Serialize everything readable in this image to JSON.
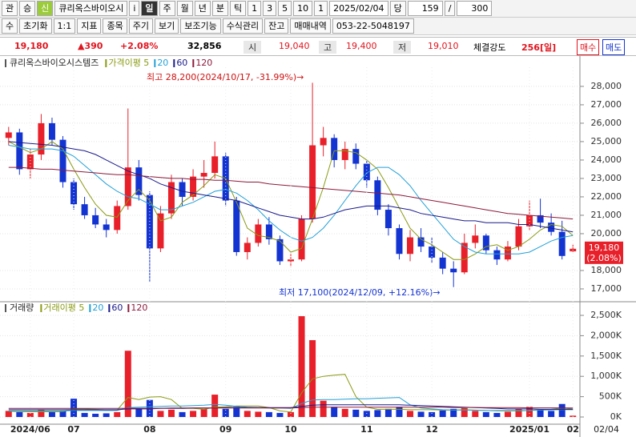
{
  "toolbar": {
    "row1": [
      "관",
      "승",
      "신",
      "큐리옥스바이오시",
      "i",
      "일",
      "주",
      "월",
      "년",
      "분",
      "틱",
      "1",
      "3",
      "5",
      "10",
      "1",
      "2025/02/04",
      "당",
      "159",
      "/",
      "300"
    ],
    "row2": [
      "수",
      "초기화",
      "1:1",
      "지표",
      "종목",
      "주기",
      "보기",
      "보조기능",
      "수식관리",
      "잔고",
      "매매내역",
      "053-22-5048197"
    ]
  },
  "quote": {
    "price": "19,180",
    "change": "▲390",
    "rate": "+2.08%",
    "volume": "32,856",
    "open_label": "시",
    "open": "19,040",
    "high_label": "고",
    "high": "19,400",
    "low_label": "저",
    "low": "19,010",
    "strength_label": "체결강도",
    "strength": "256[일]",
    "buy": "매수",
    "sell": "매도"
  },
  "chart_data": [
    {
      "type": "candlestick",
      "title": "큐리옥스바이오시스템즈",
      "up_color": "#e8202a",
      "down_color": "#1434d2",
      "open": [
        25200,
        25500,
        23500,
        24300,
        26000,
        25100,
        22800,
        21600,
        21000,
        20500,
        20200,
        21500,
        23600,
        22100,
        19200,
        21100,
        22800,
        22000,
        23100,
        23300,
        24200,
        21800,
        19000,
        19500,
        20500,
        19700,
        18500,
        18600,
        20800,
        24800,
        25200,
        24000,
        24600,
        23800,
        22900,
        21300,
        20300,
        18900,
        19800,
        19300,
        18700,
        18100,
        17900,
        19500,
        19900,
        19100,
        18600,
        19300,
        20400,
        21000,
        20600,
        20100,
        19040
      ],
      "high": [
        25800,
        25700,
        24600,
        26500,
        26300,
        25300,
        23000,
        22000,
        21400,
        20800,
        21800,
        26800,
        24000,
        22300,
        21500,
        23200,
        23000,
        23500,
        24000,
        25000,
        24400,
        22000,
        19800,
        20800,
        20900,
        19900,
        18900,
        21000,
        28200,
        25800,
        25400,
        25000,
        24900,
        24000,
        23100,
        21600,
        20500,
        20200,
        20300,
        19800,
        19000,
        18500,
        20000,
        20500,
        20000,
        19300,
        19600,
        20800,
        21800,
        21900,
        21100,
        20700,
        19400
      ],
      "low": [
        24800,
        23200,
        23000,
        24000,
        24800,
        22500,
        21300,
        20800,
        20300,
        19800,
        20000,
        21300,
        21800,
        17400,
        19000,
        20800,
        21500,
        21800,
        22500,
        23000,
        21500,
        18800,
        18600,
        19300,
        19400,
        18300,
        18200,
        18500,
        20600,
        24200,
        23600,
        23500,
        23500,
        22500,
        21000,
        19900,
        18600,
        18500,
        19000,
        18400,
        17800,
        17100,
        17800,
        19200,
        18900,
        18300,
        18500,
        19100,
        20200,
        20300,
        19900,
        18600,
        19010
      ],
      "close": [
        25500,
        23500,
        24300,
        26000,
        25100,
        22800,
        21600,
        21000,
        20500,
        20200,
        21500,
        23600,
        22100,
        19200,
        21100,
        22800,
        22000,
        23100,
        23300,
        24200,
        21800,
        19000,
        19500,
        20500,
        19700,
        18500,
        18600,
        20800,
        24800,
        25200,
        24000,
        24600,
        23800,
        22900,
        21300,
        20300,
        18900,
        19800,
        19300,
        18700,
        18100,
        17900,
        19500,
        19900,
        19100,
        18600,
        19300,
        20400,
        21000,
        20600,
        20100,
        18790,
        19180
      ],
      "series": [
        {
          "name": "가격이평 5",
          "color": "#8a9a12",
          "values": [
            25000,
            24700,
            24400,
            24600,
            25000,
            24600,
            23500,
            22500,
            21600,
            21000,
            20900,
            21800,
            22400,
            21800,
            20700,
            20900,
            21700,
            22100,
            22600,
            23200,
            23000,
            21700,
            20300,
            19900,
            19800,
            19600,
            19000,
            19200,
            20800,
            22500,
            24500,
            24500,
            24400,
            24000,
            23500,
            22500,
            21400,
            20300,
            19700,
            19400,
            19000,
            18600,
            18600,
            18900,
            19300,
            19400,
            19100,
            19300,
            19700,
            20200,
            20500,
            20400,
            19900
          ]
        },
        {
          "name": "20",
          "color": "#22a0d8",
          "values": [
            24800,
            24700,
            24600,
            24600,
            24600,
            24500,
            24200,
            23700,
            23200,
            22700,
            22300,
            22000,
            21900,
            21600,
            21300,
            21300,
            21500,
            21700,
            22000,
            22300,
            22400,
            22200,
            21800,
            21300,
            20700,
            20200,
            19800,
            19600,
            19800,
            20300,
            21000,
            21800,
            22600,
            23300,
            23600,
            23600,
            23200,
            22600,
            21800,
            21100,
            20400,
            19700,
            19300,
            19000,
            18900,
            18900,
            18900,
            18900,
            19000,
            19300,
            19600,
            19800,
            19900
          ]
        },
        {
          "name": "60",
          "color": "#1a1a8c",
          "values": [
            25000,
            24950,
            24900,
            24850,
            24800,
            24700,
            24600,
            24500,
            24300,
            24000,
            23700,
            23400,
            23200,
            23000,
            22700,
            22500,
            22300,
            22200,
            22100,
            22000,
            21900,
            21800,
            21600,
            21400,
            21200,
            21000,
            20900,
            20800,
            20800,
            20900,
            21100,
            21300,
            21400,
            21500,
            21500,
            21500,
            21400,
            21300,
            21100,
            21000,
            20900,
            20800,
            20700,
            20700,
            20600,
            20600,
            20600,
            20500,
            20500,
            20400,
            20300,
            20200,
            20100
          ]
        },
        {
          "name": "120",
          "color": "#8c1a3c",
          "values": [
            23600,
            23600,
            23550,
            23500,
            23500,
            23450,
            23400,
            23350,
            23300,
            23250,
            23200,
            23200,
            23150,
            23100,
            23050,
            23000,
            23000,
            22950,
            22950,
            22900,
            22900,
            22850,
            22800,
            22800,
            22700,
            22650,
            22600,
            22550,
            22500,
            22450,
            22400,
            22350,
            22300,
            22250,
            22200,
            22150,
            22100,
            22000,
            21900,
            21800,
            21700,
            21600,
            21500,
            21400,
            21300,
            21200,
            21100,
            21050,
            21000,
            20950,
            20900,
            20850,
            20800
          ]
        }
      ],
      "ylim": [
        16390,
        29040
      ],
      "yticks": [
        {
          "value": 17000,
          "label": "17,000"
        },
        {
          "value": 18000,
          "label": "18,000"
        },
        {
          "value": 20000,
          "label": "20,000"
        },
        {
          "value": 21000,
          "label": "21,000"
        },
        {
          "value": 22000,
          "label": "22,000"
        },
        {
          "value": 23000,
          "label": "23,000"
        },
        {
          "value": 24000,
          "label": "24,000"
        },
        {
          "value": 25000,
          "label": "25,000"
        },
        {
          "value": 26000,
          "label": "26,000"
        },
        {
          "value": 27000,
          "label": "27,000"
        },
        {
          "value": 28000,
          "label": "28,000"
        }
      ],
      "annotations": [
        "최고 28,200(2024/10/17, -31.99%)→",
        "최저 17,100(2024/12/09, +12.16%)→"
      ],
      "last_rate_label": "(2.08%)"
    },
    {
      "type": "bar",
      "title": "거래량",
      "categories": [
        null,
        null,
        "2024/06",
        null,
        null,
        null,
        "07",
        null,
        null,
        null,
        null,
        null,
        null,
        "08",
        null,
        null,
        null,
        null,
        null,
        null,
        "09",
        null,
        null,
        null,
        null,
        null,
        "10",
        null,
        null,
        null,
        null,
        null,
        null,
        "11",
        null,
        null,
        null,
        null,
        null,
        "12",
        null,
        null,
        null,
        null,
        null,
        null,
        null,
        null,
        "2025/01",
        null,
        null,
        null,
        "02"
      ],
      "values": [
        150000,
        120000,
        100000,
        180000,
        120000,
        150000,
        450000,
        100000,
        80000,
        90000,
        120000,
        1630000,
        200000,
        420000,
        150000,
        180000,
        120000,
        150000,
        200000,
        550000,
        200000,
        250000,
        150000,
        130000,
        120000,
        100000,
        120000,
        2480000,
        1890000,
        400000,
        250000,
        200000,
        180000,
        150000,
        170000,
        200000,
        250000,
        150000,
        130000,
        120000,
        160000,
        200000,
        220000,
        150000,
        120000,
        100000,
        130000,
        200000,
        250000,
        180000,
        150000,
        320000,
        32856
      ],
      "series": [
        {
          "name": "거래이평 5",
          "color": "#8a9a12",
          "values": [
            140000,
            135000,
            130000,
            135000,
            130000,
            135000,
            200000,
            200000,
            190000,
            175000,
            170000,
            480000,
            430000,
            490000,
            500000,
            430000,
            210000,
            210000,
            190000,
            240000,
            250000,
            270000,
            270000,
            270000,
            230000,
            150000,
            125000,
            590000,
            940000,
            1000000,
            1030000,
            1050000,
            500000,
            240000,
            190000,
            190000,
            190000,
            180000,
            180000,
            180000,
            170000,
            170000,
            180000,
            170000,
            160000,
            150000,
            150000,
            150000,
            160000,
            180000,
            190000,
            220000,
            200000
          ]
        },
        {
          "name": "20",
          "color": "#22a0d8",
          "values": [
            150000,
            150000,
            150000,
            150000,
            150000,
            150000,
            160000,
            160000,
            160000,
            160000,
            160000,
            230000,
            240000,
            250000,
            260000,
            270000,
            270000,
            280000,
            290000,
            310000,
            290000,
            260000,
            240000,
            230000,
            220000,
            220000,
            210000,
            330000,
            420000,
            430000,
            430000,
            440000,
            450000,
            450000,
            460000,
            470000,
            480000,
            300000,
            220000,
            200000,
            180000,
            170000,
            170000,
            165000,
            160000,
            160000,
            160000,
            160000,
            160000,
            170000,
            175000,
            180000,
            180000
          ]
        },
        {
          "name": "60",
          "color": "#1a1a8c",
          "values": [
            180000,
            180000,
            180000,
            180000,
            180000,
            180000,
            180000,
            180000,
            180000,
            180000,
            180000,
            200000,
            200000,
            200000,
            210000,
            210000,
            210000,
            220000,
            220000,
            220000,
            230000,
            230000,
            230000,
            230000,
            230000,
            230000,
            230000,
            260000,
            290000,
            300000,
            300000,
            300000,
            300000,
            300000,
            300000,
            300000,
            300000,
            290000,
            280000,
            270000,
            260000,
            250000,
            240000,
            230000,
            220000,
            210000,
            200000,
            200000,
            200000,
            190000,
            190000,
            190000,
            190000
          ]
        },
        {
          "name": "120",
          "color": "#8c1a3c",
          "values": [
            210000,
            210000,
            210000,
            210000,
            210000,
            210000,
            210000,
            210000,
            210000,
            210000,
            210000,
            215000,
            215000,
            215000,
            215000,
            220000,
            220000,
            220000,
            220000,
            220000,
            220000,
            220000,
            220000,
            220000,
            220000,
            220000,
            220000,
            230000,
            240000,
            240000,
            240000,
            240000,
            240000,
            240000,
            240000,
            240000,
            240000,
            240000,
            240000,
            240000,
            240000,
            235000,
            235000,
            235000,
            230000,
            230000,
            230000,
            230000,
            225000,
            225000,
            225000,
            225000,
            220000
          ]
        }
      ],
      "ylim": [
        -177000,
        2540000
      ],
      "yticks": [
        {
          "value": 0,
          "label": "0K"
        },
        {
          "value": 500000,
          "label": "500K"
        },
        {
          "value": 1000000,
          "label": "1,000K"
        },
        {
          "value": 1500000,
          "label": "1,500K"
        },
        {
          "value": 2000000,
          "label": "2,000K"
        },
        {
          "value": 2500000,
          "label": "2,500K"
        }
      ]
    }
  ],
  "date_label": "02/04"
}
